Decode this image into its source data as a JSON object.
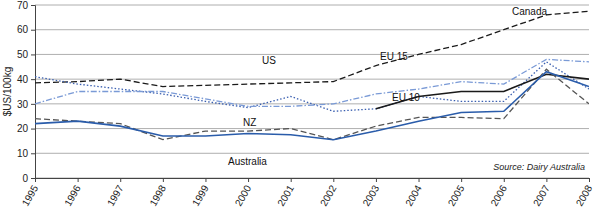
{
  "chart_data": {
    "type": "line",
    "y_label": "$US/100kg",
    "annotations": [
      "Source: Dairy Australia"
    ],
    "x": [
      1995,
      1996,
      1997,
      1998,
      1999,
      2000,
      2001,
      2002,
      2003,
      2004,
      2005,
      2006,
      2007,
      2008
    ],
    "xlim": [
      1995,
      2008
    ],
    "xticks": [
      1995,
      1996,
      1997,
      1998,
      1999,
      2000,
      2001,
      2002,
      2003,
      2004,
      2005,
      2006,
      2007,
      2008
    ],
    "ylim": [
      0,
      70
    ],
    "yticks": [
      0,
      10,
      20,
      30,
      40,
      50,
      60,
      70
    ],
    "grid": true,
    "series": [
      {
        "name": "Canada",
        "color": "#1a1a1a",
        "line_style": "dashed",
        "values": [
          38.5,
          39,
          40,
          37,
          37.5,
          38,
          38.5,
          39,
          45.5,
          50,
          54,
          60,
          66,
          67.5
        ]
      },
      {
        "name": "US",
        "color": "#3a5fb0",
        "line_style": "dotted",
        "values": [
          41,
          38,
          36,
          34,
          31,
          28.5,
          33,
          27,
          28,
          33,
          31,
          31,
          47,
          36
        ]
      },
      {
        "name": "EU 15",
        "color": "#7a9ad6",
        "line_style": "dashdot",
        "values": [
          30,
          35,
          35,
          35,
          32,
          29,
          29,
          30,
          34,
          36,
          39,
          38,
          48,
          47
        ]
      },
      {
        "name": "EU 10",
        "color": "#1a1a1a",
        "line_style": "solid",
        "values": [
          null,
          null,
          null,
          null,
          null,
          null,
          null,
          null,
          28,
          33,
          35,
          35,
          42,
          40
        ]
      },
      {
        "name": "NZ",
        "color": "#555555",
        "line_style": "dashed",
        "values": [
          24,
          23,
          22,
          15.5,
          19,
          19,
          20,
          15.5,
          21,
          24.5,
          24.5,
          24,
          44,
          30
        ]
      },
      {
        "name": "Australia",
        "color": "#2a5caa",
        "line_style": "solid",
        "values": [
          22,
          23,
          21,
          17,
          17,
          18,
          17.5,
          15.5,
          19,
          23,
          26.5,
          27,
          43,
          37
        ]
      }
    ]
  }
}
